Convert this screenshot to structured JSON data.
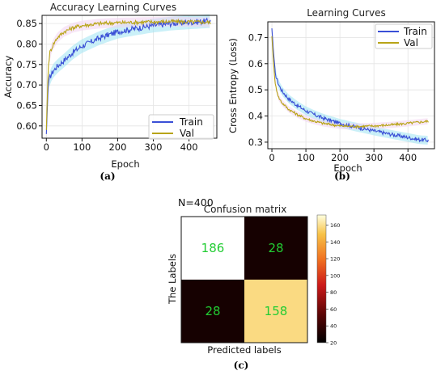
{
  "chart_data": [
    {
      "type": "line",
      "id": "a",
      "title": "Accuracy Learning Curves",
      "xlabel": "Epoch",
      "ylabel": "Accuracy",
      "panel_label": "(a)",
      "xlim": [
        -12,
        478
      ],
      "ylim": [
        0.57,
        0.87
      ],
      "xticks": [
        0,
        100,
        200,
        300,
        400
      ],
      "yticks": [
        0.6,
        0.65,
        0.7,
        0.75,
        0.8,
        0.85
      ],
      "legend": "bottom-right",
      "series": [
        {
          "name": "Train",
          "color": "#3a4fd6",
          "x": [
            0,
            5,
            10,
            20,
            30,
            50,
            75,
            100,
            125,
            150,
            200,
            250,
            300,
            350,
            400,
            460
          ],
          "values": [
            0.58,
            0.7,
            0.72,
            0.735,
            0.745,
            0.76,
            0.78,
            0.795,
            0.805,
            0.815,
            0.83,
            0.838,
            0.845,
            0.85,
            0.853,
            0.856
          ]
        },
        {
          "name": "Val",
          "color": "#b8a417",
          "x": [
            0,
            5,
            10,
            20,
            30,
            50,
            75,
            100,
            150,
            200,
            250,
            300,
            350,
            400,
            460
          ],
          "values": [
            0.59,
            0.74,
            0.78,
            0.8,
            0.815,
            0.83,
            0.84,
            0.845,
            0.85,
            0.852,
            0.853,
            0.854,
            0.855,
            0.854,
            0.853
          ]
        }
      ]
    },
    {
      "type": "line",
      "id": "b",
      "title": "Learning Curves",
      "xlabel": "Epoch",
      "ylabel": "Cross Entropy (Loss)",
      "panel_label": "(b)",
      "xlim": [
        -12,
        478
      ],
      "ylim": [
        0.275,
        0.76
      ],
      "xticks": [
        0,
        100,
        200,
        300,
        400
      ],
      "yticks": [
        0.3,
        0.4,
        0.5,
        0.6,
        0.7
      ],
      "legend": "top-right",
      "series": [
        {
          "name": "Train",
          "color": "#3a4fd6",
          "x": [
            0,
            5,
            10,
            20,
            30,
            50,
            75,
            100,
            125,
            150,
            200,
            250,
            300,
            350,
            400,
            430,
            460
          ],
          "values": [
            0.735,
            0.64,
            0.56,
            0.52,
            0.495,
            0.465,
            0.44,
            0.42,
            0.405,
            0.392,
            0.372,
            0.357,
            0.343,
            0.33,
            0.318,
            0.31,
            0.307
          ]
        },
        {
          "name": "Val",
          "color": "#b8a417",
          "x": [
            0,
            5,
            10,
            20,
            30,
            50,
            75,
            100,
            125,
            150,
            200,
            250,
            300,
            350,
            400,
            460
          ],
          "values": [
            0.705,
            0.6,
            0.52,
            0.47,
            0.45,
            0.425,
            0.405,
            0.39,
            0.38,
            0.372,
            0.362,
            0.36,
            0.362,
            0.366,
            0.372,
            0.38
          ]
        }
      ]
    },
    {
      "type": "heatmap",
      "id": "c",
      "annotation": "N=400",
      "title": "Confusion matrix",
      "xlabel": "Predicted labels",
      "ylabel": "The Labels",
      "panel_label": "(c)",
      "matrix": [
        [
          186,
          28
        ],
        [
          28,
          158
        ]
      ],
      "colorbar": {
        "min": 20,
        "max": 172,
        "ticks": [
          20,
          40,
          60,
          80,
          100,
          120,
          140,
          160
        ]
      }
    }
  ]
}
